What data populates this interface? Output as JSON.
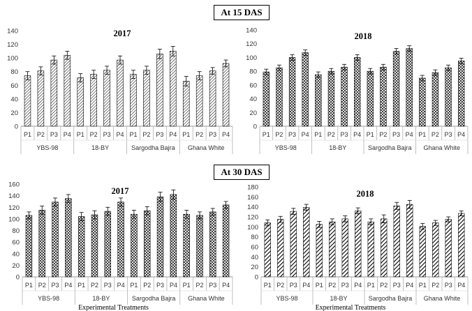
{
  "sections": [
    {
      "label": "At 15 DAS"
    },
    {
      "label": "At 30 DAS"
    }
  ],
  "chart_data": [
    {
      "type": "bar",
      "title": "2017",
      "xlabel": "",
      "ylabel": "",
      "ylim": [
        0,
        140
      ],
      "yticks": [
        0,
        20,
        40,
        60,
        80,
        100,
        120,
        140
      ],
      "categories": [
        "P1",
        "P2",
        "P3",
        "P4",
        "P1",
        "P2",
        "P3",
        "P4",
        "P1",
        "P2",
        "P3",
        "P4",
        "P1",
        "P2",
        "P3",
        "P4"
      ],
      "groups": [
        "YBS-98",
        "18-BY",
        "Sargodha Bajra",
        "Ghana White"
      ],
      "values": [
        74,
        81,
        97,
        104,
        71,
        76,
        82,
        97,
        76,
        82,
        106,
        110,
        66,
        74,
        81,
        92
      ],
      "errors": [
        6,
        6,
        6,
        6,
        6,
        6,
        6,
        6,
        6,
        6,
        7,
        7,
        7,
        6,
        5,
        5
      ],
      "pattern": "diagonal",
      "grid": false
    },
    {
      "type": "bar",
      "title": "2018",
      "xlabel": "",
      "ylabel": "",
      "ylim": [
        0,
        140
      ],
      "yticks": [
        0,
        20,
        40,
        60,
        80,
        100,
        120,
        140
      ],
      "categories": [
        "P1",
        "P2",
        "P3",
        "P4",
        "P1",
        "P2",
        "P3",
        "P4",
        "P1",
        "P2",
        "P3",
        "P4",
        "P1",
        "P2",
        "P3",
        "P4"
      ],
      "groups": [
        "YBS-98",
        "18-BY",
        "Sargodha Bajra",
        "Ghana White"
      ],
      "values": [
        79,
        85,
        100,
        107,
        75,
        80,
        86,
        100,
        80,
        86,
        109,
        113,
        70,
        78,
        85,
        95
      ],
      "errors": [
        4,
        4,
        4,
        4,
        4,
        4,
        4,
        4,
        4,
        4,
        4,
        4,
        4,
        4,
        4,
        4
      ],
      "pattern": "crosshatch",
      "grid": false
    },
    {
      "type": "bar",
      "title": "2017",
      "xlabel": "Experimental Treatments",
      "ylabel": "",
      "ylim": [
        0,
        160
      ],
      "yticks": [
        0,
        20,
        40,
        60,
        80,
        100,
        120,
        140,
        160
      ],
      "categories": [
        "P1",
        "P2",
        "P3",
        "P4",
        "P1",
        "P2",
        "P3",
        "P4",
        "P1",
        "P2",
        "P3",
        "P4",
        "P1",
        "P2",
        "P3",
        "P4"
      ],
      "groups": [
        "YBS-98",
        "18-BY",
        "Sargodha Bajra",
        "Ghana White"
      ],
      "values": [
        106,
        115,
        129,
        135,
        104,
        107,
        113,
        129,
        108,
        114,
        138,
        142,
        108,
        106,
        112,
        124
      ],
      "errors": [
        6,
        7,
        7,
        7,
        7,
        7,
        7,
        7,
        7,
        7,
        8,
        8,
        7,
        6,
        6,
        6
      ],
      "pattern": "crosshatch",
      "grid": false
    },
    {
      "type": "bar",
      "title": "2018",
      "xlabel": "Experimental Treatments",
      "ylabel": "",
      "ylim": [
        0,
        180
      ],
      "yticks": [
        0,
        20,
        40,
        60,
        80,
        100,
        120,
        140,
        160,
        180
      ],
      "categories": [
        "P1",
        "P2",
        "P3",
        "P4",
        "P1",
        "P2",
        "P3",
        "P4",
        "P1",
        "P2",
        "P3",
        "P4",
        "P1",
        "P2",
        "P3",
        "P4"
      ],
      "groups": [
        "YBS-98",
        "18-BY",
        "Sargodha Bajra",
        "Ghana White"
      ],
      "values": [
        108,
        115,
        131,
        139,
        105,
        110,
        116,
        132,
        110,
        116,
        142,
        145,
        101,
        108,
        115,
        127
      ],
      "errors": [
        6,
        6,
        6,
        6,
        6,
        6,
        6,
        6,
        6,
        8,
        7,
        8,
        6,
        5,
        5,
        5
      ],
      "pattern": "bold-diagonal",
      "grid": false
    }
  ]
}
